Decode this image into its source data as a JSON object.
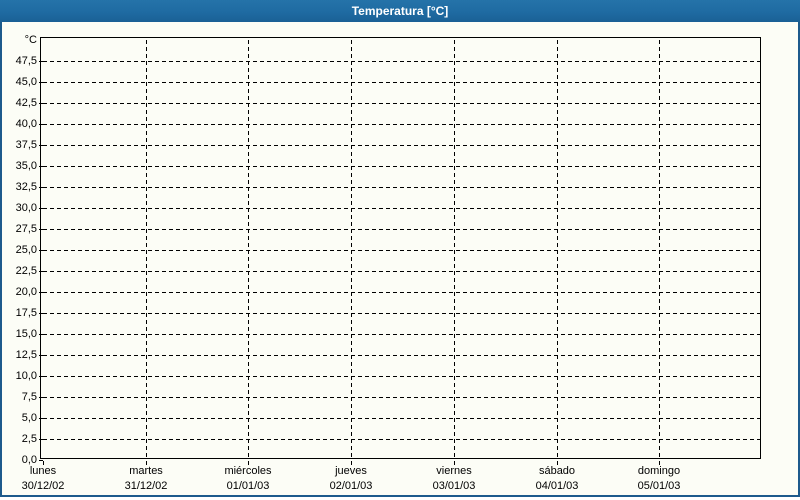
{
  "window": {
    "title": "Temperatura [°C]"
  },
  "colors": {
    "titlebar_bg": "#1f6ba2",
    "titlebar_text": "#ffffff",
    "window_border": "#1d5a8c",
    "content_bg": "#fcfdf6",
    "plot_border": "#000000",
    "gridline": "#000000",
    "label_text": "#000000"
  },
  "chart_data": {
    "type": "line",
    "title": "Temperatura [°C]",
    "y_axis_unit_label": "°C",
    "ylim": [
      0,
      50
    ],
    "y_tick_step": 2.5,
    "y_tick_labels": [
      "0,0",
      "2,5",
      "5,0",
      "7,5",
      "10,0",
      "12,5",
      "15,0",
      "17,5",
      "20,0",
      "22,5",
      "25,0",
      "27,5",
      "30,0",
      "32,5",
      "35,0",
      "37,5",
      "40,0",
      "42,5",
      "45,0",
      "47,5"
    ],
    "x_categories": [
      {
        "name": "lunes",
        "date": "30/12/02"
      },
      {
        "name": "martes",
        "date": "31/12/02"
      },
      {
        "name": "miércoles",
        "date": "01/01/03"
      },
      {
        "name": "jueves",
        "date": "02/01/03"
      },
      {
        "name": "viernes",
        "date": "03/01/03"
      },
      {
        "name": "sábado",
        "date": "04/01/03"
      },
      {
        "name": "domingo",
        "date": "05/01/03"
      }
    ],
    "series": [],
    "grid": "dashed",
    "legend": "none"
  }
}
